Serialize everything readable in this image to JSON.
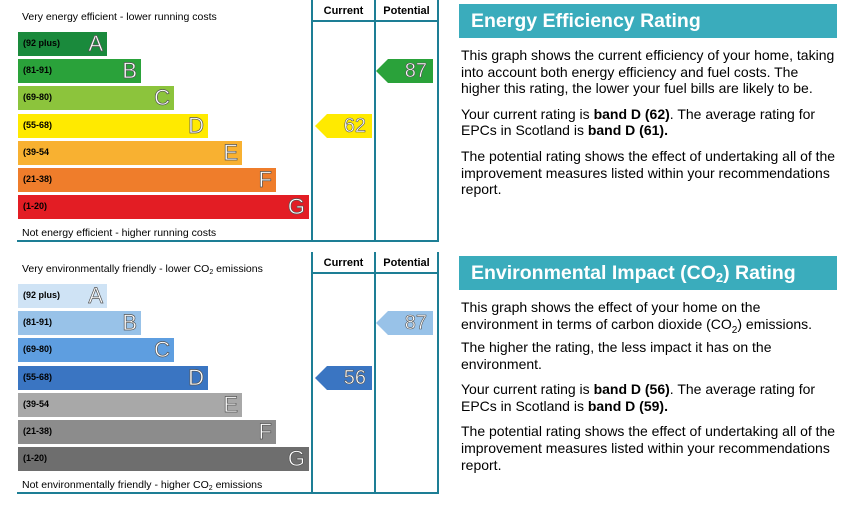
{
  "chart_data": [
    {
      "type": "bar",
      "name": "energy-efficiency",
      "top_label": "Very energy efficient - lower running costs",
      "bottom_label": "Not energy efficient - higher running costs",
      "column_headers": [
        "Current",
        "Potential"
      ],
      "bands": [
        {
          "range": "(92 plus)",
          "letter": "A",
          "color": "#1a8a3c"
        },
        {
          "range": "(81-91)",
          "letter": "B",
          "color": "#2aa23a"
        },
        {
          "range": "(69-80)",
          "letter": "C",
          "color": "#8cc43c"
        },
        {
          "range": "(55-68)",
          "letter": "D",
          "color": "#ffea00"
        },
        {
          "range": "(39-54",
          "letter": "E",
          "color": "#f8b131"
        },
        {
          "range": "(21-38)",
          "letter": "F",
          "color": "#ef7d2b"
        },
        {
          "range": "(1-20)",
          "letter": "G",
          "color": "#e31d24"
        }
      ],
      "current": {
        "value": 62,
        "band": "D",
        "color": "#ffea00"
      },
      "potential": {
        "value": 87,
        "band": "B",
        "color": "#2aa23a"
      }
    },
    {
      "type": "bar",
      "name": "environmental-impact",
      "top_label_main": "Very environmentally friendly - lower CO",
      "top_label_sub": "2",
      "top_label_end": " emissions",
      "bottom_label_main": "Not environmentally friendly - higher CO",
      "bottom_label_sub": "2",
      "bottom_label_end": " emissions",
      "column_headers": [
        "Current",
        "Potential"
      ],
      "bands": [
        {
          "range": "(92 plus)",
          "letter": "A",
          "color": "#cfe3f5"
        },
        {
          "range": "(81-91)",
          "letter": "B",
          "color": "#98c2e8"
        },
        {
          "range": "(69-80)",
          "letter": "C",
          "color": "#5e9ee0"
        },
        {
          "range": "(55-68)",
          "letter": "D",
          "color": "#3a75c2"
        },
        {
          "range": "(39-54",
          "letter": "E",
          "color": "#a8a8a8"
        },
        {
          "range": "(21-38)",
          "letter": "F",
          "color": "#8c8c8c"
        },
        {
          "range": "(1-20)",
          "letter": "G",
          "color": "#6e6e6e"
        }
      ],
      "current": {
        "value": 56,
        "band": "D",
        "color": "#3a75c2"
      },
      "potential": {
        "value": 87,
        "band": "B",
        "color": "#98c2e8"
      }
    }
  ],
  "energy_panel": {
    "title": "Energy Efficiency Rating",
    "p1": "This graph shows the current efficiency of your home, taking into account both energy efficiency and fuel costs. The higher this rating, the lower your fuel bills are likely to be.",
    "p2_a": "Your current rating is ",
    "p2_b": "band D (62)",
    "p2_c": ". The average rating for EPCs in Scotland is ",
    "p2_d": "band D (61).",
    "p3": "The potential rating shows the effect of undertaking all of the improvement measures listed within your recommendations report."
  },
  "env_panel": {
    "title_a": "Environmental Impact (CO",
    "title_sub": "2",
    "title_b": ") Rating",
    "p1_a": "This graph shows the effect of your home on the environment in terms of carbon dioxide (CO",
    "p1_sub": "2",
    "p1_b": ") emissions. The higher the rating, the less impact it has on the environment.",
    "p2_a": "Your current rating is ",
    "p2_b": "band D (56)",
    "p2_c": ". The average rating for EPCs in Scotland is ",
    "p2_d": "band D (59).",
    "p3": "The potential rating shows the effect of undertaking all of the improvement measures listed within your recommendations report."
  }
}
